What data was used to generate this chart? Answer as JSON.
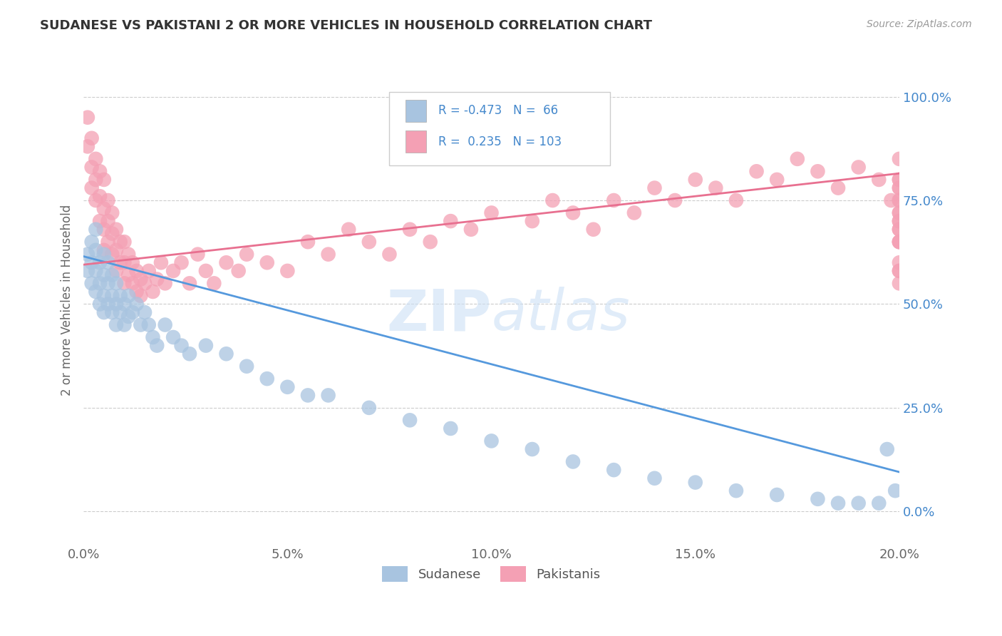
{
  "title": "SUDANESE VS PAKISTANI 2 OR MORE VEHICLES IN HOUSEHOLD CORRELATION CHART",
  "source": "Source: ZipAtlas.com",
  "ylabel": "2 or more Vehicles in Household",
  "xlim": [
    0.0,
    0.2
  ],
  "ylim": [
    -0.08,
    1.1
  ],
  "x_ticks": [
    0.0,
    0.05,
    0.1,
    0.15,
    0.2
  ],
  "x_tick_labels": [
    "0.0%",
    "5.0%",
    "10.0%",
    "15.0%",
    "20.0%"
  ],
  "y_ticks": [
    0.0,
    0.25,
    0.5,
    0.75,
    1.0
  ],
  "y_tick_labels": [
    "0.0%",
    "25.0%",
    "50.0%",
    "75.0%",
    "100.0%"
  ],
  "sudanese_color": "#a8c4e0",
  "pakistani_color": "#f4a0b4",
  "sudanese_line_color": "#5599dd",
  "pakistani_line_color": "#e87090",
  "R_sudanese": -0.473,
  "N_sudanese": 66,
  "R_pakistani": 0.235,
  "N_pakistani": 103,
  "background_color": "#ffffff",
  "grid_color": "#cccccc",
  "sudanese_x": [
    0.001,
    0.001,
    0.002,
    0.002,
    0.002,
    0.003,
    0.003,
    0.003,
    0.003,
    0.004,
    0.004,
    0.004,
    0.005,
    0.005,
    0.005,
    0.005,
    0.006,
    0.006,
    0.006,
    0.007,
    0.007,
    0.007,
    0.008,
    0.008,
    0.008,
    0.009,
    0.009,
    0.01,
    0.01,
    0.011,
    0.011,
    0.012,
    0.013,
    0.014,
    0.015,
    0.016,
    0.017,
    0.018,
    0.02,
    0.022,
    0.024,
    0.026,
    0.03,
    0.035,
    0.04,
    0.045,
    0.05,
    0.055,
    0.06,
    0.07,
    0.08,
    0.09,
    0.1,
    0.11,
    0.12,
    0.13,
    0.14,
    0.15,
    0.16,
    0.17,
    0.18,
    0.185,
    0.19,
    0.195,
    0.197,
    0.199
  ],
  "sudanese_y": [
    0.62,
    0.58,
    0.65,
    0.6,
    0.55,
    0.63,
    0.58,
    0.53,
    0.68,
    0.6,
    0.55,
    0.5,
    0.62,
    0.57,
    0.52,
    0.48,
    0.6,
    0.55,
    0.5,
    0.57,
    0.52,
    0.48,
    0.55,
    0.5,
    0.45,
    0.52,
    0.48,
    0.5,
    0.45,
    0.52,
    0.47,
    0.48,
    0.5,
    0.45,
    0.48,
    0.45,
    0.42,
    0.4,
    0.45,
    0.42,
    0.4,
    0.38,
    0.4,
    0.38,
    0.35,
    0.32,
    0.3,
    0.28,
    0.28,
    0.25,
    0.22,
    0.2,
    0.17,
    0.15,
    0.12,
    0.1,
    0.08,
    0.07,
    0.05,
    0.04,
    0.03,
    0.02,
    0.02,
    0.02,
    0.15,
    0.05
  ],
  "pakistani_x": [
    0.001,
    0.001,
    0.002,
    0.002,
    0.002,
    0.003,
    0.003,
    0.003,
    0.004,
    0.004,
    0.004,
    0.005,
    0.005,
    0.005,
    0.005,
    0.006,
    0.006,
    0.006,
    0.007,
    0.007,
    0.007,
    0.008,
    0.008,
    0.008,
    0.009,
    0.009,
    0.01,
    0.01,
    0.01,
    0.011,
    0.011,
    0.012,
    0.012,
    0.013,
    0.013,
    0.014,
    0.014,
    0.015,
    0.016,
    0.017,
    0.018,
    0.019,
    0.02,
    0.022,
    0.024,
    0.026,
    0.028,
    0.03,
    0.032,
    0.035,
    0.038,
    0.04,
    0.045,
    0.05,
    0.055,
    0.06,
    0.065,
    0.07,
    0.075,
    0.08,
    0.085,
    0.09,
    0.095,
    0.1,
    0.11,
    0.115,
    0.12,
    0.125,
    0.13,
    0.135,
    0.14,
    0.145,
    0.15,
    0.155,
    0.16,
    0.165,
    0.17,
    0.175,
    0.18,
    0.185,
    0.19,
    0.195,
    0.198,
    0.2,
    0.2,
    0.2,
    0.2,
    0.2,
    0.2,
    0.2,
    0.2,
    0.2,
    0.2,
    0.2,
    0.2,
    0.2,
    0.2,
    0.2,
    0.2,
    0.2,
    0.2,
    0.2,
    0.2
  ],
  "pakistani_y": [
    0.95,
    0.88,
    0.9,
    0.83,
    0.78,
    0.85,
    0.8,
    0.75,
    0.82,
    0.76,
    0.7,
    0.8,
    0.73,
    0.68,
    0.63,
    0.75,
    0.7,
    0.65,
    0.72,
    0.67,
    0.62,
    0.68,
    0.63,
    0.58,
    0.65,
    0.6,
    0.65,
    0.6,
    0.55,
    0.62,
    0.57,
    0.6,
    0.55,
    0.58,
    0.53,
    0.56,
    0.52,
    0.55,
    0.58,
    0.53,
    0.56,
    0.6,
    0.55,
    0.58,
    0.6,
    0.55,
    0.62,
    0.58,
    0.55,
    0.6,
    0.58,
    0.62,
    0.6,
    0.58,
    0.65,
    0.62,
    0.68,
    0.65,
    0.62,
    0.68,
    0.65,
    0.7,
    0.68,
    0.72,
    0.7,
    0.75,
    0.72,
    0.68,
    0.75,
    0.72,
    0.78,
    0.75,
    0.8,
    0.78,
    0.75,
    0.82,
    0.8,
    0.85,
    0.82,
    0.78,
    0.83,
    0.8,
    0.75,
    0.72,
    0.68,
    0.78,
    0.65,
    0.8,
    0.58,
    0.75,
    0.7,
    0.65,
    0.6,
    0.85,
    0.55,
    0.72,
    0.68,
    0.78,
    0.65,
    0.75,
    0.8,
    0.58,
    0.7
  ]
}
